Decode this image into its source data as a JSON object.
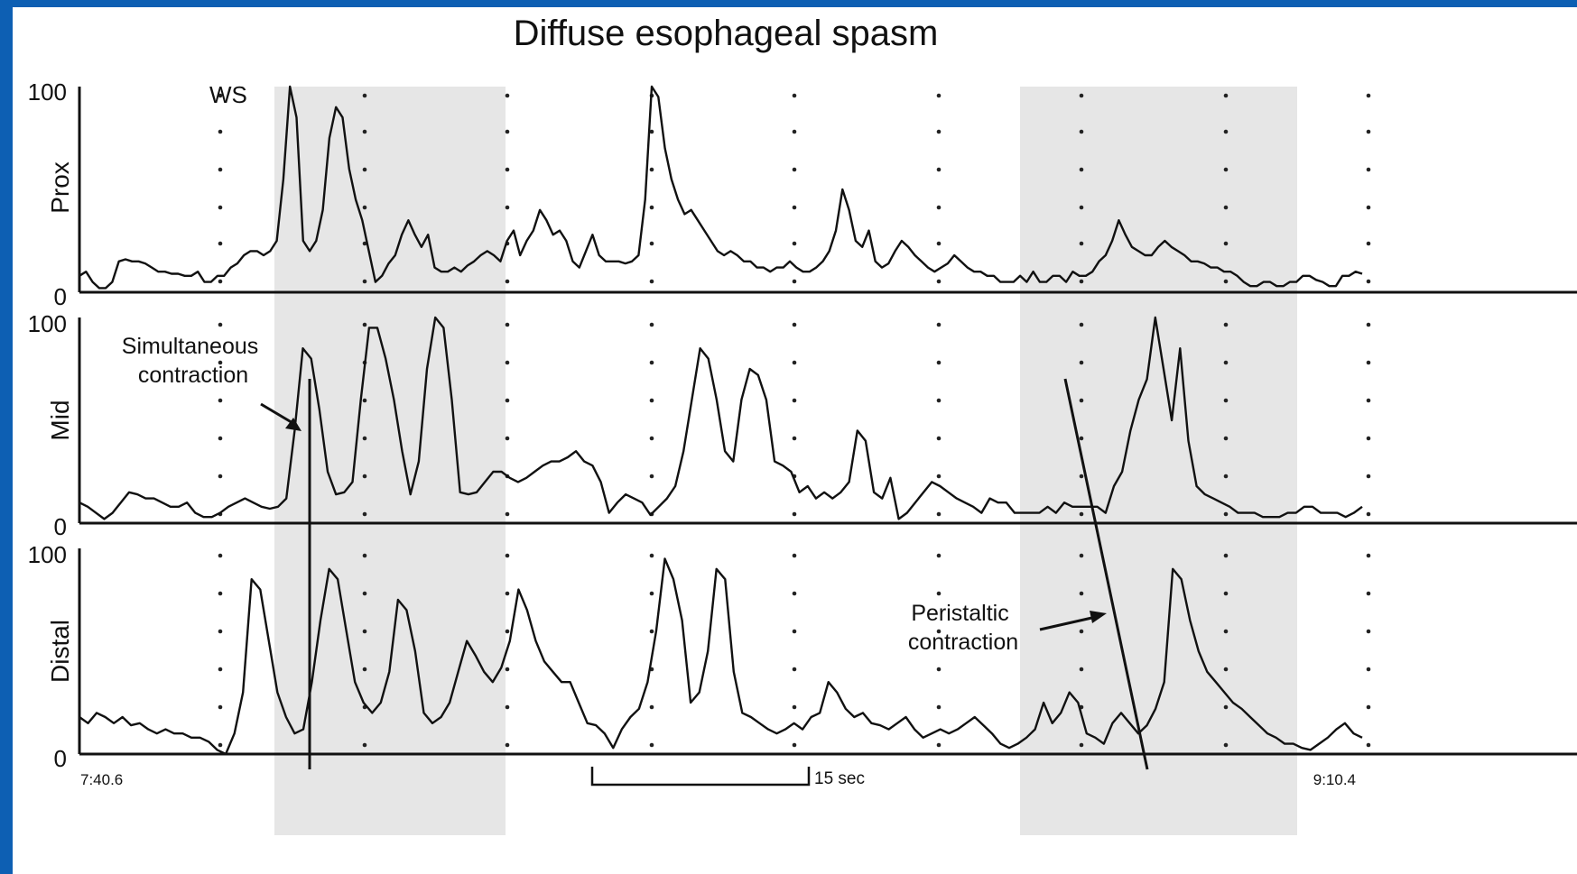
{
  "chart_data": {
    "type": "line",
    "title": "Diffuse esophageal spasm",
    "ylim": [
      0,
      100
    ],
    "y_ticks": [
      "0",
      "100"
    ],
    "x_start_label": "7:40.6",
    "x_end_label": "9:10.4",
    "scale_bar_label": "15 sec",
    "swallow_label": "WS",
    "grid": "dotted",
    "panels": [
      {
        "name": "Prox",
        "values": [
          8,
          10,
          5,
          2,
          2,
          5,
          15,
          16,
          15,
          15,
          14,
          12,
          10,
          10,
          9,
          9,
          8,
          8,
          10,
          5,
          5,
          8,
          8,
          12,
          14,
          18,
          20,
          20,
          18,
          20,
          25,
          55,
          100,
          85,
          25,
          20,
          25,
          40,
          75,
          90,
          85,
          60,
          45,
          35,
          20,
          5,
          8,
          14,
          18,
          28,
          35,
          28,
          22,
          28,
          12,
          10,
          10,
          12,
          10,
          13,
          15,
          18,
          20,
          18,
          15,
          25,
          30,
          18,
          25,
          30,
          40,
          35,
          28,
          30,
          25,
          15,
          12,
          20,
          28,
          18,
          15,
          15,
          15,
          14,
          15,
          18,
          45,
          100,
          95,
          70,
          55,
          45,
          38,
          40,
          35,
          30,
          25,
          20,
          18,
          20,
          18,
          15,
          15,
          12,
          12,
          10,
          12,
          12,
          15,
          12,
          10,
          10,
          12,
          15,
          20,
          30,
          50,
          40,
          25,
          22,
          30,
          15,
          12,
          14,
          20,
          25,
          22,
          18,
          15,
          12,
          10,
          12,
          14,
          18,
          15,
          12,
          10,
          10,
          8,
          8,
          5,
          5,
          5,
          8,
          5,
          10,
          5,
          5,
          8,
          8,
          5,
          10,
          8,
          8,
          10,
          15,
          18,
          25,
          35,
          28,
          22,
          20,
          18,
          18,
          22,
          25,
          22,
          20,
          18,
          15,
          15,
          14,
          12,
          12,
          10,
          10,
          8,
          5,
          3,
          3,
          5,
          5,
          3,
          3,
          5,
          5,
          8,
          8,
          6,
          5,
          3,
          3,
          8,
          8,
          10,
          9
        ]
      },
      {
        "name": "Mid",
        "values": [
          10,
          8,
          5,
          2,
          5,
          10,
          15,
          14,
          12,
          12,
          10,
          8,
          8,
          10,
          5,
          3,
          3,
          5,
          8,
          10,
          12,
          10,
          8,
          7,
          8,
          12,
          45,
          85,
          80,
          55,
          25,
          14,
          15,
          20,
          60,
          95,
          95,
          80,
          60,
          35,
          14,
          30,
          75,
          100,
          95,
          60,
          15,
          14,
          15,
          20,
          25,
          25,
          22,
          20,
          22,
          25,
          28,
          30,
          30,
          32,
          35,
          30,
          28,
          20,
          5,
          10,
          14,
          12,
          10,
          4,
          8,
          12,
          18,
          35,
          60,
          85,
          80,
          60,
          35,
          30,
          60,
          75,
          72,
          60,
          30,
          28,
          25,
          15,
          18,
          12,
          15,
          12,
          15,
          20,
          45,
          40,
          15,
          12,
          22,
          2,
          5,
          10,
          15,
          20,
          18,
          15,
          12,
          10,
          8,
          5,
          12,
          10,
          10,
          5,
          5,
          5,
          5,
          8,
          5,
          10,
          8,
          8,
          8,
          8,
          5,
          18,
          25,
          45,
          60,
          70,
          100,
          75,
          50,
          85,
          40,
          18,
          14,
          12,
          10,
          8,
          5,
          5,
          5,
          3,
          3,
          3,
          5,
          5,
          8,
          8,
          5,
          5,
          5,
          3,
          5,
          8
        ]
      },
      {
        "name": "Distal",
        "values": [
          18,
          15,
          20,
          18,
          15,
          18,
          14,
          15,
          12,
          10,
          12,
          10,
          10,
          8,
          8,
          6,
          2,
          0,
          10,
          30,
          85,
          80,
          55,
          30,
          18,
          10,
          12,
          35,
          65,
          90,
          85,
          60,
          35,
          25,
          20,
          25,
          40,
          75,
          70,
          50,
          20,
          15,
          18,
          25,
          40,
          55,
          48,
          40,
          35,
          42,
          55,
          80,
          70,
          55,
          45,
          40,
          35,
          35,
          25,
          15,
          14,
          10,
          3,
          12,
          18,
          22,
          35,
          60,
          95,
          85,
          65,
          25,
          30,
          50,
          90,
          85,
          40,
          20,
          18,
          15,
          12,
          10,
          12,
          15,
          12,
          18,
          20,
          35,
          30,
          22,
          18,
          20,
          15,
          14,
          12,
          15,
          18,
          12,
          8,
          10,
          12,
          10,
          12,
          15,
          18,
          14,
          10,
          5,
          3,
          5,
          8,
          12,
          25,
          15,
          20,
          30,
          25,
          10,
          8,
          5,
          15,
          20,
          15,
          10,
          14,
          22,
          35,
          90,
          85,
          65,
          50,
          40,
          35,
          30,
          25,
          22,
          18,
          14,
          10,
          8,
          5,
          5,
          3,
          2,
          5,
          8,
          12,
          15,
          10,
          8
        ]
      }
    ],
    "annotations": [
      "Simultaneous contraction",
      "Peristaltic contraction"
    ]
  }
}
